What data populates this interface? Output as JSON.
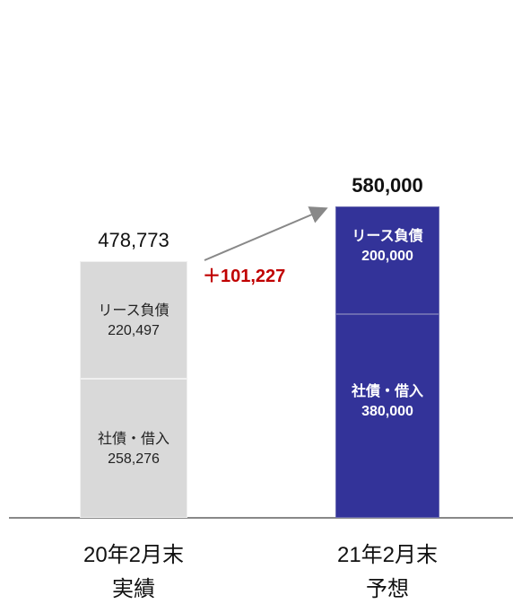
{
  "chart_data": {
    "type": "stacked-bar",
    "categories": [
      "20年2月末\n実績",
      "21年2月末\n予想"
    ],
    "colors": [
      "#d9d9d9",
      "#333399"
    ],
    "series": [
      {
        "name": "社債・借入",
        "values": [
          258276,
          380000
        ],
        "value_labels": [
          "258,276",
          "380,000"
        ]
      },
      {
        "name": "リース負債",
        "values": [
          220497,
          200000
        ],
        "value_labels": [
          "220,497",
          "200,000"
        ]
      }
    ],
    "totals": [
      478773,
      580000
    ],
    "total_labels": [
      "478,773",
      "580,000"
    ],
    "annotation": "＋101,227"
  }
}
